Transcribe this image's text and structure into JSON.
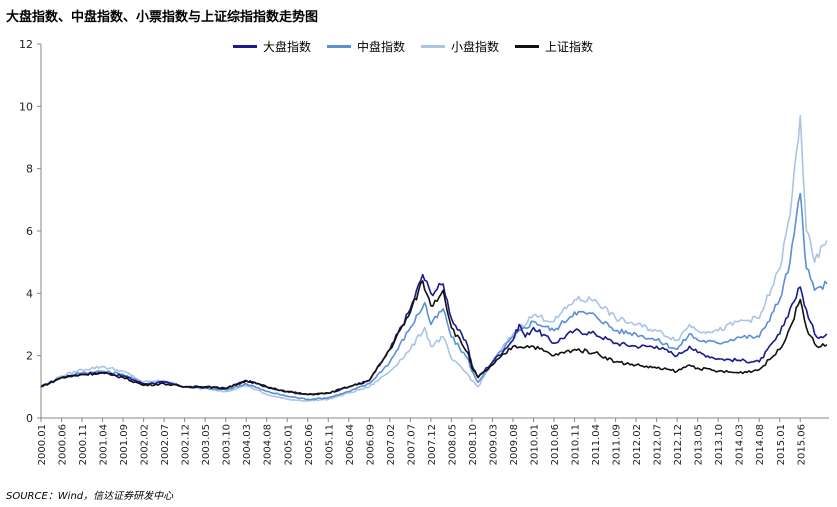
{
  "title": "大盘指数、中盘指数、小票指数与上证综指指数走势图",
  "source": "SOURCE：Wind，信达证券研发中心",
  "chart_data": {
    "type": "line",
    "title": "大盘指数、中盘指数、小票指数与上证综指指数走势图",
    "xlabel": "",
    "ylabel": "",
    "ylim": [
      0,
      12
    ],
    "yticks": [
      0,
      2,
      4,
      6,
      8,
      10,
      12
    ],
    "grid": false,
    "legend_position": "top-center",
    "x_tick_labels": [
      "2000.01",
      "2000.06",
      "2000.11",
      "2001.04",
      "2001.09",
      "2002.02",
      "2002.07",
      "2002.12",
      "2003.05",
      "2003.10",
      "2004.03",
      "2004.08",
      "2005.01",
      "2005.06",
      "2005.11",
      "2006.04",
      "2006.09",
      "2007.02",
      "2007.07",
      "2007.12",
      "2008.05",
      "2008.10",
      "2009.03",
      "2009.08",
      "2010.01",
      "2010.06",
      "2010.11",
      "2011.04",
      "2011.09",
      "2012.02",
      "2012.07",
      "2012.12",
      "2013.05",
      "2013.10",
      "2014.03",
      "2014.08",
      "2015.01",
      "2015.06"
    ],
    "x_axis_end": 38.4,
    "series": [
      {
        "name": "大盘指数",
        "color": "#1a1a8c",
        "points": [
          [
            0,
            1.0
          ],
          [
            1,
            1.3
          ],
          [
            2,
            1.4
          ],
          [
            3,
            1.45
          ],
          [
            4,
            1.35
          ],
          [
            5,
            1.1
          ],
          [
            6,
            1.15
          ],
          [
            7,
            1.0
          ],
          [
            8,
            1.0
          ],
          [
            9,
            0.95
          ],
          [
            10,
            1.2
          ],
          [
            11,
            1.0
          ],
          [
            12,
            0.85
          ],
          [
            13,
            0.75
          ],
          [
            14,
            0.8
          ],
          [
            15,
            1.0
          ],
          [
            16,
            1.2
          ],
          [
            17,
            2.2
          ],
          [
            18,
            3.5
          ],
          [
            18.6,
            4.6
          ],
          [
            19,
            4.0
          ],
          [
            19.6,
            4.3
          ],
          [
            20,
            3.2
          ],
          [
            20.8,
            2.3
          ],
          [
            21,
            1.7
          ],
          [
            21.3,
            1.3
          ],
          [
            22,
            1.8
          ],
          [
            23,
            2.5
          ],
          [
            23.3,
            3.0
          ],
          [
            23.6,
            2.6
          ],
          [
            24,
            2.9
          ],
          [
            25,
            2.4
          ],
          [
            26,
            2.8
          ],
          [
            27,
            2.7
          ],
          [
            28,
            2.4
          ],
          [
            29,
            2.3
          ],
          [
            30,
            2.3
          ],
          [
            31,
            2.0
          ],
          [
            31.6,
            2.3
          ],
          [
            32,
            2.1
          ],
          [
            33,
            1.9
          ],
          [
            34,
            1.85
          ],
          [
            35,
            1.8
          ],
          [
            36,
            2.7
          ],
          [
            36.5,
            3.5
          ],
          [
            37,
            4.2
          ],
          [
            37.4,
            3.2
          ],
          [
            37.8,
            2.6
          ],
          [
            38.3,
            2.7
          ]
        ]
      },
      {
        "name": "中盘指数",
        "color": "#5b8fd6",
        "points": [
          [
            0,
            1.0
          ],
          [
            1,
            1.3
          ],
          [
            2,
            1.45
          ],
          [
            3,
            1.5
          ],
          [
            4,
            1.4
          ],
          [
            5,
            1.1
          ],
          [
            6,
            1.15
          ],
          [
            7,
            1.0
          ],
          [
            8,
            0.95
          ],
          [
            9,
            0.9
          ],
          [
            10,
            1.1
          ],
          [
            11,
            0.85
          ],
          [
            12,
            0.7
          ],
          [
            13,
            0.6
          ],
          [
            14,
            0.65
          ],
          [
            15,
            0.85
          ],
          [
            16,
            1.1
          ],
          [
            17,
            1.8
          ],
          [
            18,
            2.9
          ],
          [
            18.7,
            3.7
          ],
          [
            19,
            3.0
          ],
          [
            19.6,
            3.5
          ],
          [
            20,
            2.6
          ],
          [
            20.8,
            1.9
          ],
          [
            21,
            1.5
          ],
          [
            21.3,
            1.15
          ],
          [
            22,
            1.8
          ],
          [
            23,
            2.6
          ],
          [
            24,
            3.1
          ],
          [
            25,
            2.8
          ],
          [
            26,
            3.4
          ],
          [
            27,
            3.3
          ],
          [
            28,
            2.8
          ],
          [
            29,
            2.7
          ],
          [
            30,
            2.5
          ],
          [
            31,
            2.2
          ],
          [
            31.6,
            2.7
          ],
          [
            32,
            2.5
          ],
          [
            33,
            2.4
          ],
          [
            34,
            2.6
          ],
          [
            35,
            2.6
          ],
          [
            36,
            3.8
          ],
          [
            36.5,
            5.0
          ],
          [
            37,
            7.2
          ],
          [
            37.3,
            4.8
          ],
          [
            37.7,
            4.1
          ],
          [
            38.3,
            4.3
          ]
        ]
      },
      {
        "name": "小盘指数",
        "color": "#aac4e6",
        "points": [
          [
            0,
            1.0
          ],
          [
            1,
            1.35
          ],
          [
            2,
            1.55
          ],
          [
            3,
            1.65
          ],
          [
            4,
            1.5
          ],
          [
            5,
            1.15
          ],
          [
            6,
            1.2
          ],
          [
            7,
            1.0
          ],
          [
            8,
            0.95
          ],
          [
            9,
            0.85
          ],
          [
            10,
            1.05
          ],
          [
            11,
            0.75
          ],
          [
            12,
            0.6
          ],
          [
            13,
            0.55
          ],
          [
            14,
            0.6
          ],
          [
            15,
            0.8
          ],
          [
            16,
            1.0
          ],
          [
            17,
            1.5
          ],
          [
            18,
            2.2
          ],
          [
            18.7,
            2.9
          ],
          [
            19,
            2.3
          ],
          [
            19.6,
            2.6
          ],
          [
            20,
            1.9
          ],
          [
            20.8,
            1.4
          ],
          [
            21,
            1.2
          ],
          [
            21.3,
            1.0
          ],
          [
            22,
            1.8
          ],
          [
            23,
            2.7
          ],
          [
            24,
            3.3
          ],
          [
            25,
            3.1
          ],
          [
            26,
            3.8
          ],
          [
            27,
            3.8
          ],
          [
            28,
            3.2
          ],
          [
            29,
            3.0
          ],
          [
            30,
            2.8
          ],
          [
            31,
            2.5
          ],
          [
            31.6,
            3.0
          ],
          [
            32,
            2.8
          ],
          [
            33,
            2.8
          ],
          [
            34,
            3.1
          ],
          [
            35,
            3.2
          ],
          [
            36,
            4.8
          ],
          [
            36.5,
            6.5
          ],
          [
            37,
            9.7
          ],
          [
            37.3,
            6.0
          ],
          [
            37.7,
            5.0
          ],
          [
            38.3,
            5.7
          ]
        ]
      },
      {
        "name": "上证指数",
        "color": "#111111",
        "points": [
          [
            0,
            1.0
          ],
          [
            1,
            1.3
          ],
          [
            2,
            1.4
          ],
          [
            3,
            1.45
          ],
          [
            4,
            1.3
          ],
          [
            5,
            1.05
          ],
          [
            6,
            1.1
          ],
          [
            7,
            1.0
          ],
          [
            8,
            1.0
          ],
          [
            9,
            0.95
          ],
          [
            10,
            1.2
          ],
          [
            11,
            1.0
          ],
          [
            12,
            0.85
          ],
          [
            13,
            0.75
          ],
          [
            14,
            0.8
          ],
          [
            15,
            1.0
          ],
          [
            16,
            1.2
          ],
          [
            17,
            2.2
          ],
          [
            18,
            3.4
          ],
          [
            18.6,
            4.4
          ],
          [
            19,
            3.6
          ],
          [
            19.6,
            4.1
          ],
          [
            20,
            2.9
          ],
          [
            20.8,
            2.1
          ],
          [
            21,
            1.6
          ],
          [
            21.3,
            1.3
          ],
          [
            22,
            1.7
          ],
          [
            23,
            2.3
          ],
          [
            24,
            2.3
          ],
          [
            25,
            2.0
          ],
          [
            26,
            2.2
          ],
          [
            27,
            2.1
          ],
          [
            28,
            1.8
          ],
          [
            29,
            1.7
          ],
          [
            30,
            1.6
          ],
          [
            31,
            1.5
          ],
          [
            31.6,
            1.7
          ],
          [
            32,
            1.6
          ],
          [
            33,
            1.5
          ],
          [
            34,
            1.45
          ],
          [
            35,
            1.55
          ],
          [
            36,
            2.2
          ],
          [
            36.5,
            2.9
          ],
          [
            37,
            3.8
          ],
          [
            37.4,
            2.7
          ],
          [
            37.8,
            2.3
          ],
          [
            38.3,
            2.35
          ]
        ]
      }
    ]
  }
}
